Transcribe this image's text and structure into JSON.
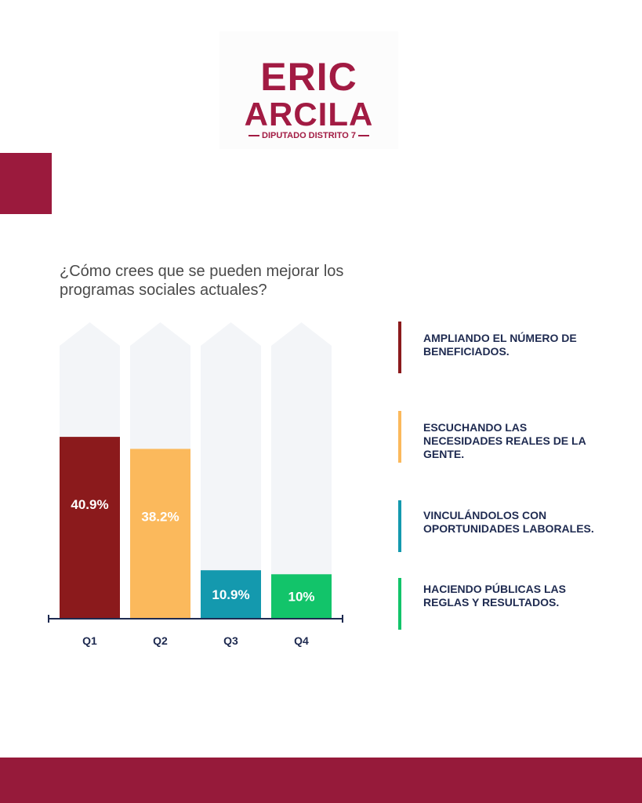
{
  "logo": {
    "line1": "ERIC",
    "line2": "ARCILA",
    "subtitle": "DIPUTADO DISTRITO 7"
  },
  "question": "¿Cómo crees que se pueden mejorar los programas sociales actuales?",
  "colors": {
    "brand": "#9b1a3d",
    "q1": "#8b1a1c",
    "q2": "#fbb95c",
    "q3": "#1499ae",
    "q4": "#12c46a",
    "track": "#f3f5f8",
    "legend_text": "#1e2a50"
  },
  "chart_data": {
    "type": "bar",
    "categories": [
      "Q1",
      "Q2",
      "Q3",
      "Q4"
    ],
    "values": [
      40.9,
      38.2,
      10.9,
      10
    ],
    "data_labels": [
      "40.9%",
      "38.2%",
      "10.9%",
      "10%"
    ],
    "ylim": [
      0,
      100
    ],
    "grid": false,
    "legend_placement": "right",
    "legend": [
      "AMPLIANDO EL NÚMERO DE BENEFICIADOS.",
      "ESCUCHANDO LAS NECESIDADES REALES DE LA GENTE.",
      "VINCULÁNDOLOS CON OPORTUNIDADES LABORALES.",
      "HACIENDO PÚBLICAS LAS REGLAS Y RESULTADOS."
    ]
  }
}
